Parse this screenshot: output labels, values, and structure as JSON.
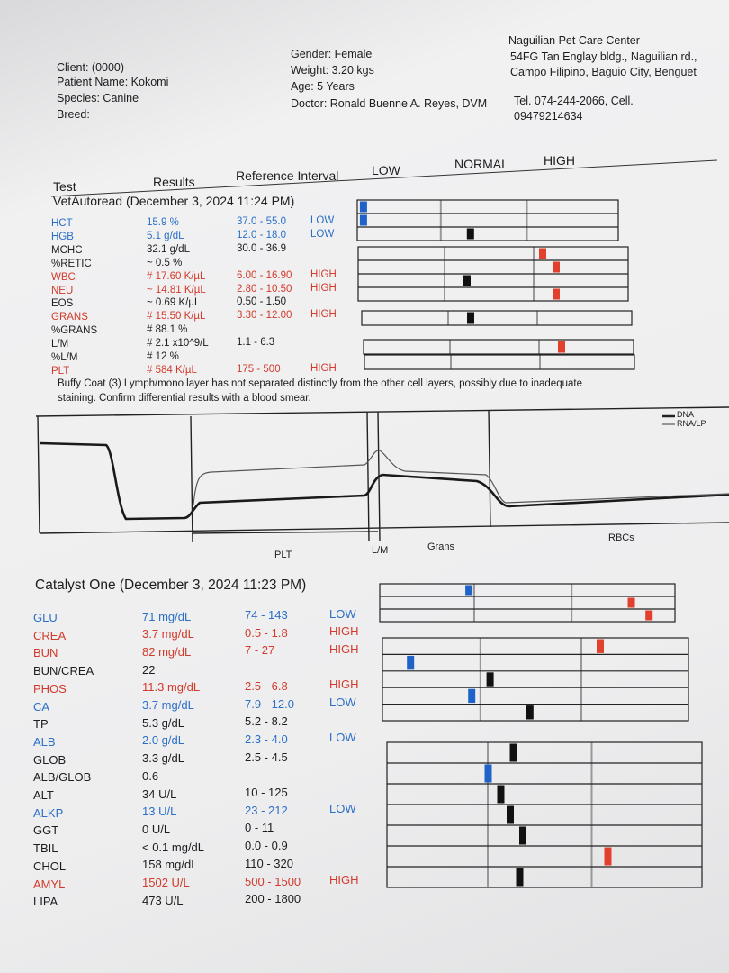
{
  "header": {
    "client": "Client:  (0000)",
    "patient": "Patient Name: Kokomi",
    "species": "Species: Canine",
    "breed": "Breed:",
    "gender": "Gender: Female",
    "weight": "Weight: 3.20 kgs",
    "age": "Age: 5 Years",
    "doctor": "Doctor: Ronald Buenne A. Reyes, DVM"
  },
  "clinic": {
    "name": "Naguilian Pet Care Center",
    "address": "54FG Tan Englay bldg., Naguilian rd., Campo Filipino, Baguio City, Benguet",
    "contact": "Tel. 074-244-2066,      Cell. 09479214634"
  },
  "columns": [
    "Test",
    "Results",
    "Reference Interval",
    "LOW",
    "NORMAL",
    "HIGH"
  ],
  "vetautoread": {
    "title": "VetAutoread (December 3, 2024 11:24 PM)",
    "rows": [
      {
        "test": "HCT",
        "result": "15.9 %",
        "range": "37.0 - 55.0",
        "flag": "LOW"
      },
      {
        "test": "HGB",
        "result": "5.1 g/dL",
        "range": "12.0 - 18.0",
        "flag": "LOW"
      },
      {
        "test": "MCHC",
        "result": "32.1 g/dL",
        "range": "30.0 - 36.9"
      },
      {
        "test": "%RETIC",
        "result": "~ 0.5 %"
      },
      {
        "test": "WBC",
        "result": "# 17.60 K/µL",
        "range": "6.00 - 16.90",
        "flag": "HIGH"
      },
      {
        "test": "NEU",
        "result": "~ 14.81 K/µL",
        "range": "2.80 - 10.50",
        "flag": "HIGH"
      },
      {
        "test": "EOS",
        "result": "~ 0.69 K/µL",
        "range": "0.50 - 1.50"
      },
      {
        "test": "GRANS",
        "result": "# 15.50 K/µL",
        "range": "3.30 - 12.00",
        "flag": "HIGH"
      },
      {
        "test": "%GRANS",
        "result": "# 88.1 %"
      },
      {
        "test": "L/M",
        "result": "# 2.1 x10^9/L",
        "range": "1.1 - 6.3"
      },
      {
        "test": "%L/M",
        "result": "# 12 %"
      },
      {
        "test": "PLT",
        "result": "# 584 K/µL",
        "range": "175 - 500",
        "flag": "HIGH"
      }
    ]
  },
  "buffy_note": "Buffy Coat (3)  Lymph/mono layer has not separated distinctly from the other cell  layers, possibly due to inadequate staining.  Confirm differential  results with a blood smear.",
  "trace": {
    "legend": [
      "DNA",
      "RNA/LP"
    ],
    "labels": [
      "PLT",
      "L/M",
      "Grans",
      "RBCs"
    ]
  },
  "catalyst": {
    "title": "Catalyst One (December 3, 2024 11:23 PM)",
    "rows": [
      {
        "test": "GLU",
        "result": "71 mg/dL",
        "range": "74 - 143",
        "flag": "LOW"
      },
      {
        "test": "CREA",
        "result": "3.7 mg/dL",
        "range": "0.5 - 1.8",
        "flag": "HIGH"
      },
      {
        "test": "BUN",
        "result": "82 mg/dL",
        "range": "7 - 27",
        "flag": "HIGH"
      },
      {
        "test": "BUN/CREA",
        "result": "22"
      },
      {
        "test": "PHOS",
        "result": "11.3 mg/dL",
        "range": "2.5 - 6.8",
        "flag": "HIGH"
      },
      {
        "test": "CA",
        "result": "3.7 mg/dL",
        "range": "7.9 - 12.0",
        "flag": "LOW"
      },
      {
        "test": "TP",
        "result": "5.3 g/dL",
        "range": "5.2 - 8.2"
      },
      {
        "test": "ALB",
        "result": "2.0 g/dL",
        "range": "2.3 - 4.0",
        "flag": "LOW"
      },
      {
        "test": "GLOB",
        "result": "3.3 g/dL",
        "range": "2.5 - 4.5"
      },
      {
        "test": "ALB/GLOB",
        "result": "0.6"
      },
      {
        "test": "ALT",
        "result": "34 U/L",
        "range": "10 - 125"
      },
      {
        "test": "ALKP",
        "result": "13 U/L",
        "range": "23 - 212",
        "flag": "LOW"
      },
      {
        "test": "GGT",
        "result": "0 U/L",
        "range": "0 - 11"
      },
      {
        "test": "TBIL",
        "result": "< 0.1 mg/dL",
        "range": "0.0 - 0.9"
      },
      {
        "test": "CHOL",
        "result": "158 mg/dL",
        "range": "110 - 320"
      },
      {
        "test": "AMYL",
        "result": "1502 U/L",
        "range": "500 - 1500",
        "flag": "HIGH"
      },
      {
        "test": "LIPA",
        "result": "473 U/L",
        "range": "200 - 1800"
      }
    ]
  }
}
